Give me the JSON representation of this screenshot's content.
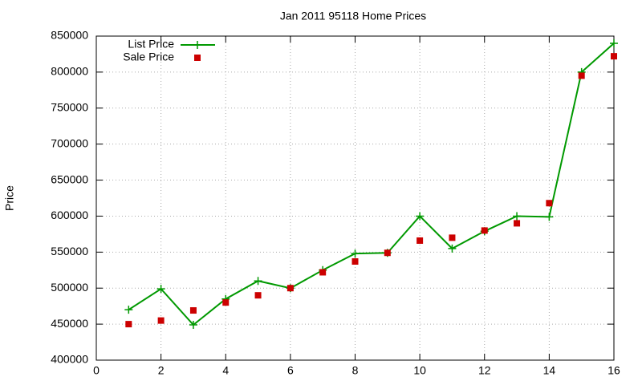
{
  "chart_data": {
    "type": "line",
    "title": "Jan 2011 95118 Home Prices",
    "y_label": "Price",
    "x": [
      1,
      2,
      3,
      4,
      5,
      6,
      7,
      8,
      9,
      10,
      11,
      12,
      13,
      14,
      15,
      16
    ],
    "series": [
      {
        "name": "List Price",
        "color": "#009900",
        "style": "linespoints",
        "values": [
          470000,
          499000,
          449000,
          485000,
          510000,
          499900,
          525000,
          548000,
          549000,
          600000,
          555000,
          579000,
          600000,
          599000,
          800000,
          840000
        ]
      },
      {
        "name": "Sale Price",
        "color": "#cc0000",
        "style": "points",
        "values": [
          450000,
          455000,
          469000,
          480000,
          490000,
          500000,
          522000,
          537000,
          549000,
          566000,
          570000,
          580000,
          590000,
          618000,
          795000,
          822000
        ]
      }
    ],
    "xlim": [
      0,
      16
    ],
    "xticks": [
      0,
      2,
      4,
      6,
      8,
      10,
      12,
      14,
      16
    ],
    "ylim": [
      400000,
      850000
    ],
    "yticks": [
      400000,
      450000,
      500000,
      550000,
      600000,
      650000,
      700000,
      750000,
      800000,
      850000
    ],
    "grid": true,
    "legend": "top-left"
  }
}
